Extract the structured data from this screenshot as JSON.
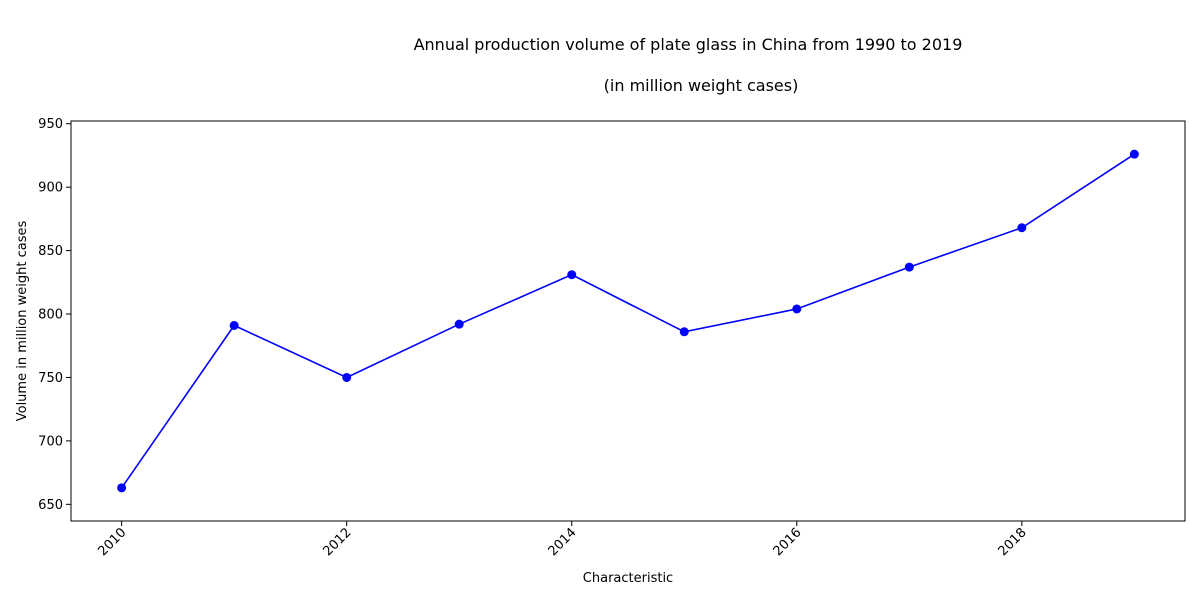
{
  "chart_data": {
    "type": "line",
    "title": "Annual production volume of plate glass in China from 1990 to 2019",
    "subtitle": "(in million weight cases)",
    "xlabel": "Characteristic",
    "ylabel": "Volume in million weight cases",
    "x": [
      2010,
      2011,
      2012,
      2013,
      2014,
      2015,
      2016,
      2017,
      2018,
      2019
    ],
    "values": [
      663,
      791,
      750,
      792,
      831,
      786,
      804,
      837,
      868,
      926
    ],
    "xlim": [
      2009.55,
      2019.45
    ],
    "ylim": [
      636.85,
      952.15
    ],
    "xticks": [
      2010,
      2012,
      2014,
      2016,
      2018
    ],
    "yticks": [
      650,
      700,
      750,
      800,
      850,
      900,
      950
    ],
    "grid": false,
    "legend": "none",
    "colors": {
      "line": "#0000ff",
      "marker": "#0000ff",
      "axes": "#000000"
    }
  }
}
